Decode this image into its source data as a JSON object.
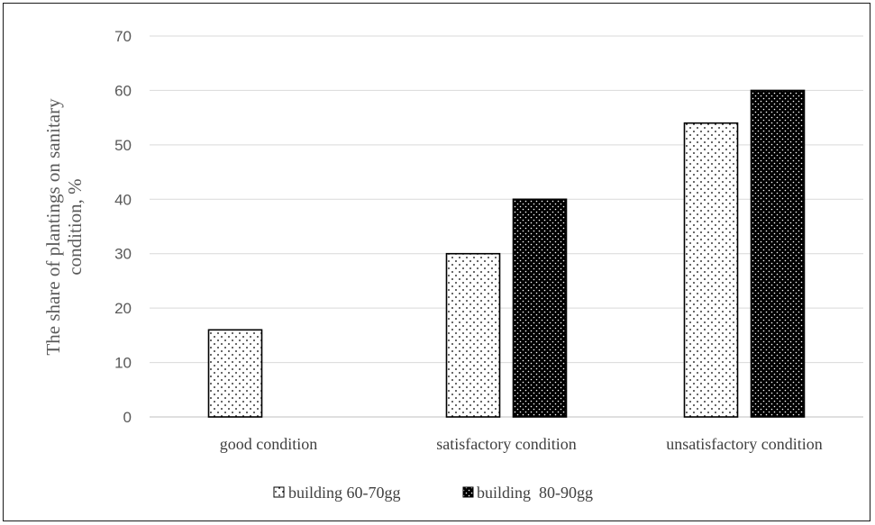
{
  "chart_data": {
    "type": "bar",
    "categories": [
      "good condition",
      "satisfactory condition",
      "unsatisfactory condition"
    ],
    "series": [
      {
        "name": "building 60-70gg",
        "values": [
          16,
          30,
          54
        ],
        "color": "#ffffff",
        "pattern": "light-dots"
      },
      {
        "name": "building  80-90gg",
        "values": [
          0,
          40,
          60
        ],
        "color": "#000000",
        "pattern": "dark-dots"
      }
    ],
    "title": "",
    "ylabel_lines": [
      "The share of plantings on sanitary",
      "condition, %"
    ],
    "ylim": [
      0,
      70
    ],
    "yticks": [
      0,
      10,
      20,
      30,
      40,
      50,
      60,
      70
    ],
    "grid": true,
    "legend_position": "bottom"
  }
}
